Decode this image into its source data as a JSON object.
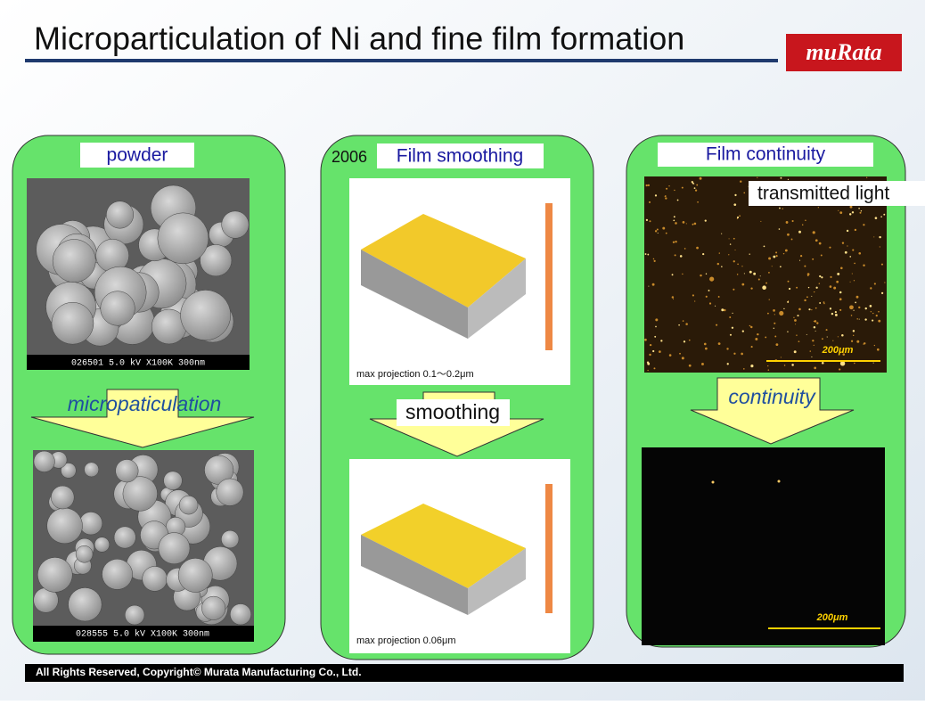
{
  "header": {
    "title": "Microparticulation of Ni and fine film formation",
    "logo": "muRata"
  },
  "panels": [
    {
      "label": "powder",
      "top_caption": "026501 5.0 kV X100K 300nm",
      "arrow": "micropaticulation",
      "bottom_caption": "028555 5.0 kV X100K 300nm"
    },
    {
      "year": "2006",
      "label": "Film smoothing",
      "top_caption": "max projection 0.1～0.2μm",
      "arrow": "smoothing",
      "bottom_caption": "max projection 0.06μm"
    },
    {
      "label": "Film continuity",
      "top_caption": "transmitted light",
      "top_scale": "200μm",
      "arrow": "continuity",
      "bottom_scale": "200μm"
    }
  ],
  "footer": {
    "text": "All Rights Reserved, Copyright© Murata Manufacturing Co., Ltd."
  }
}
